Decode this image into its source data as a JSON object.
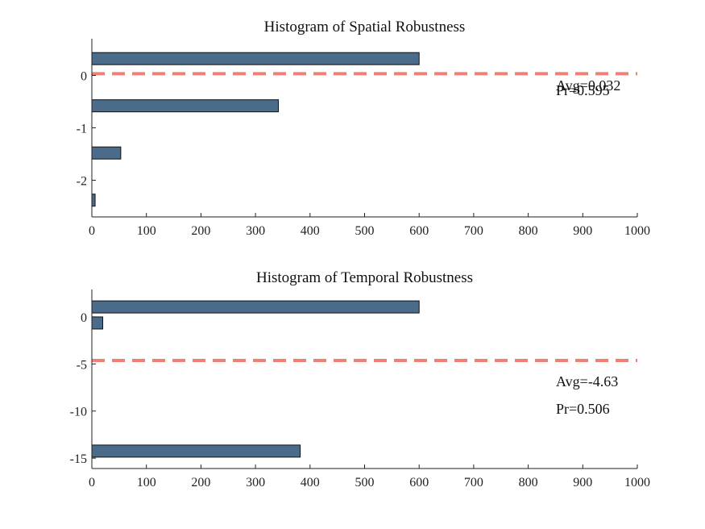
{
  "chart_data": [
    {
      "type": "bar",
      "orientation": "horizontal",
      "title": "Histogram of Spatial Robustness",
      "xlabel": "",
      "ylabel": "",
      "xlim": [
        0,
        1000
      ],
      "ylim": [
        -2.7,
        0.7
      ],
      "xticks": [
        0,
        100,
        200,
        300,
        400,
        500,
        600,
        700,
        800,
        900,
        1000
      ],
      "yticks": [
        0,
        -1,
        -2
      ],
      "bin_centers": [
        0.32,
        -0.58,
        -1.48,
        -2.38
      ],
      "values": [
        600,
        342,
        53,
        6
      ],
      "bar_color": "#4a6b8a",
      "average_line": {
        "value": 0.032,
        "color": "#f07f76",
        "style": "dashed"
      },
      "annotations": [
        "Avg=0.032",
        "Pr=0.595"
      ],
      "grid": false
    },
    {
      "type": "bar",
      "orientation": "horizontal",
      "title": "Histogram of Temporal Robustness",
      "xlabel": "",
      "ylabel": "",
      "xlim": [
        0,
        1000
      ],
      "ylim": [
        -16.1,
        2.9
      ],
      "xticks": [
        0,
        100,
        200,
        300,
        400,
        500,
        600,
        700,
        800,
        900,
        1000
      ],
      "yticks": [
        0,
        -5,
        -10,
        -15
      ],
      "bin_centers": [
        1.05,
        -0.65,
        -14.25
      ],
      "values": [
        600,
        20,
        382
      ],
      "bar_color": "#4a6b8a",
      "average_line": {
        "value": -4.63,
        "color": "#f07f76",
        "style": "dashed"
      },
      "annotations": [
        "Avg=-4.63",
        "Pr=0.506"
      ],
      "grid": false
    }
  ]
}
